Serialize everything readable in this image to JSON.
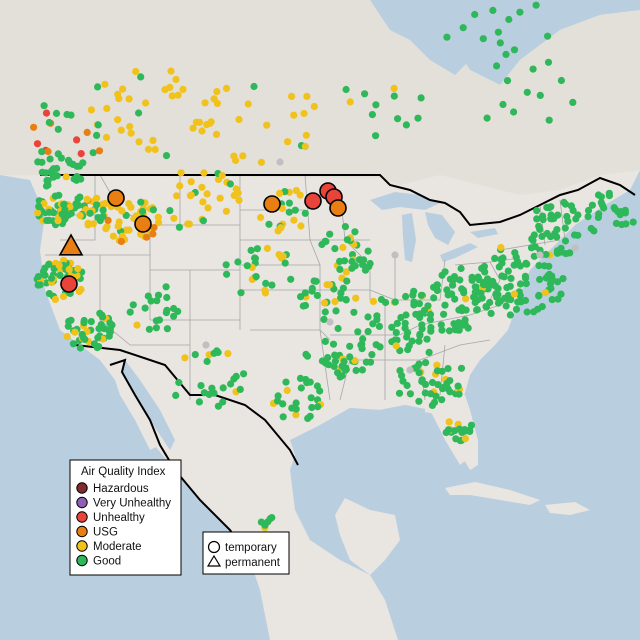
{
  "map": {
    "colors": {
      "ocean": "#b9cfe0",
      "land": "#e9e5e1",
      "land_alt": "#e3dfd9",
      "lake": "#b9cfe0",
      "state_border": "#a7a7a7",
      "country_border": "#000000",
      "no_data": "#c0c0c0"
    },
    "legend": {
      "title": "Air Quality Index",
      "items": [
        {
          "label": "Hazardous",
          "color": "#7e2c2c"
        },
        {
          "label": "Very Unhealthy",
          "color": "#8f5fb5"
        },
        {
          "label": "Unhealthy",
          "color": "#e8443a"
        },
        {
          "label": "USG",
          "color": "#e97f12"
        },
        {
          "label": "Moderate",
          "color": "#f0c21b"
        },
        {
          "label": "Good",
          "color": "#2fb85a"
        }
      ]
    },
    "shape_legend": {
      "items": [
        {
          "label": "temporary",
          "shape": "circle"
        },
        {
          "label": "permanent",
          "shape": "triangle"
        }
      ]
    },
    "highlighted_monitors": [
      {
        "category": "USG",
        "shape": "circle",
        "region": "north Idaho"
      },
      {
        "category": "USG",
        "shape": "circle",
        "region": "western Montana"
      },
      {
        "category": "USG",
        "shape": "circle",
        "region": "eastern Montana"
      },
      {
        "category": "Unhealthy",
        "shape": "circle",
        "region": "northern California"
      },
      {
        "category": "USG",
        "shape": "triangle",
        "region": "southern Oregon"
      },
      {
        "category": "Unhealthy",
        "shape": "circle",
        "region": "eastern North Dakota"
      },
      {
        "category": "Unhealthy",
        "shape": "circle",
        "region": "eastern North Dakota"
      },
      {
        "category": "Unhealthy",
        "shape": "circle",
        "region": "eastern North Dakota"
      },
      {
        "category": "USG",
        "shape": "circle",
        "region": "eastern North Dakota"
      }
    ]
  }
}
